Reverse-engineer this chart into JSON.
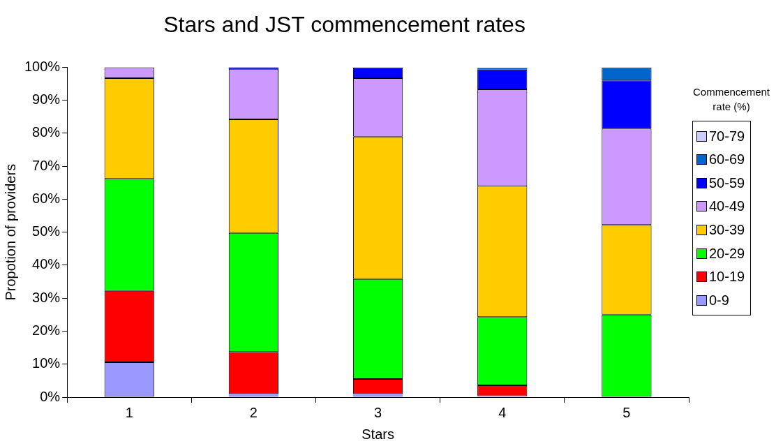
{
  "chart_data": {
    "type": "bar",
    "title": "Stars and JST commencement rates",
    "xlabel": "Stars",
    "ylabel": "Propotion of providers",
    "legend_title": "Commencement rate (%)",
    "categories": [
      "1",
      "2",
      "3",
      "4",
      "5"
    ],
    "stacked": true,
    "legend": "right",
    "grid": false,
    "ylim": [
      0,
      100
    ],
    "yticks": [
      {
        "value": 0,
        "label": "0%"
      },
      {
        "value": 10,
        "label": "10%"
      },
      {
        "value": 20,
        "label": "20%"
      },
      {
        "value": 30,
        "label": "30%"
      },
      {
        "value": 40,
        "label": "40%"
      },
      {
        "value": 50,
        "label": "50%"
      },
      {
        "value": 60,
        "label": "60%"
      },
      {
        "value": 70,
        "label": "70%"
      },
      {
        "value": 80,
        "label": "80%"
      },
      {
        "value": 90,
        "label": "90%"
      },
      {
        "value": 100,
        "label": "100%"
      }
    ],
    "series": [
      {
        "name": "0-9",
        "color": "#9999ff",
        "values": [
          10.6,
          1.0,
          1.0,
          0.3,
          0
        ]
      },
      {
        "name": "10-19",
        "color": "#ff0000",
        "values": [
          21.6,
          12.7,
          4.5,
          3.3,
          0
        ]
      },
      {
        "name": "20-29",
        "color": "#00ff00",
        "values": [
          34.0,
          36.1,
          30.3,
          20.7,
          25.0
        ]
      },
      {
        "name": "30-39",
        "color": "#ffcc00",
        "values": [
          30.5,
          34.4,
          43.2,
          39.7,
          27.2
        ]
      },
      {
        "name": "40-49",
        "color": "#cc99ff",
        "values": [
          3.3,
          15.3,
          17.7,
          29.3,
          29.2
        ]
      },
      {
        "name": "50-59",
        "color": "#0000ff",
        "values": [
          0,
          0.5,
          3.3,
          6.0,
          14.6
        ]
      },
      {
        "name": "60-69",
        "color": "#0066cc",
        "values": [
          0,
          0,
          0,
          0.5,
          4.0
        ]
      },
      {
        "name": "70-79",
        "color": "#ccccff",
        "values": [
          0,
          0,
          0,
          null,
          0
        ]
      }
    ]
  }
}
